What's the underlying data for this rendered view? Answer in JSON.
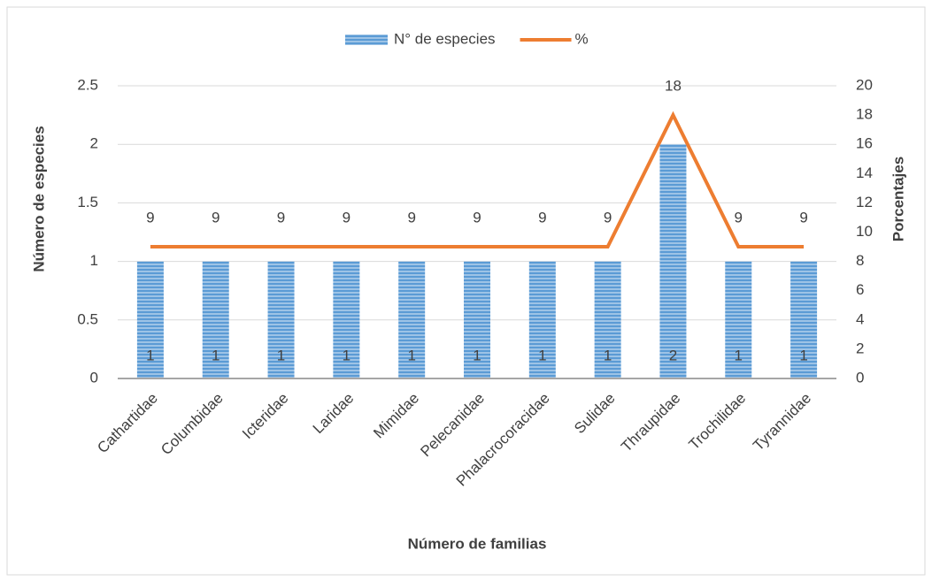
{
  "chart_data": {
    "type": "combo",
    "categories": [
      "Cathartidae",
      "Columbidae",
      "Icteridae",
      "Laridae",
      "Mimidae",
      "Pelecanidae",
      "Phalacrocoracidae",
      "Sulidae",
      "Thraupidae",
      "Trochilidae",
      "Tyrannidae"
    ],
    "series": [
      {
        "name": "N° de especies",
        "type": "bar",
        "color": "#5b9bd5",
        "values": [
          1,
          1,
          1,
          1,
          1,
          1,
          1,
          1,
          2,
          1,
          1
        ]
      },
      {
        "name": "%",
        "type": "line",
        "color": "#ed7d31",
        "axis": "y2",
        "values": [
          9,
          9,
          9,
          9,
          9,
          9,
          9,
          9,
          18,
          9,
          9
        ]
      }
    ],
    "ylim": [
      0,
      2.5
    ],
    "yticks": [
      0,
      0.5,
      1,
      1.5,
      2,
      2.5
    ],
    "y2lim": [
      0,
      20
    ],
    "y2ticks": [
      0,
      2,
      4,
      6,
      8,
      10,
      12,
      14,
      16,
      18,
      20
    ],
    "ylabel": "Número de especies",
    "y2label": "Porcentajes",
    "xlabel": "Número de familias",
    "grid": true,
    "legend": "top",
    "data_labels": true
  }
}
